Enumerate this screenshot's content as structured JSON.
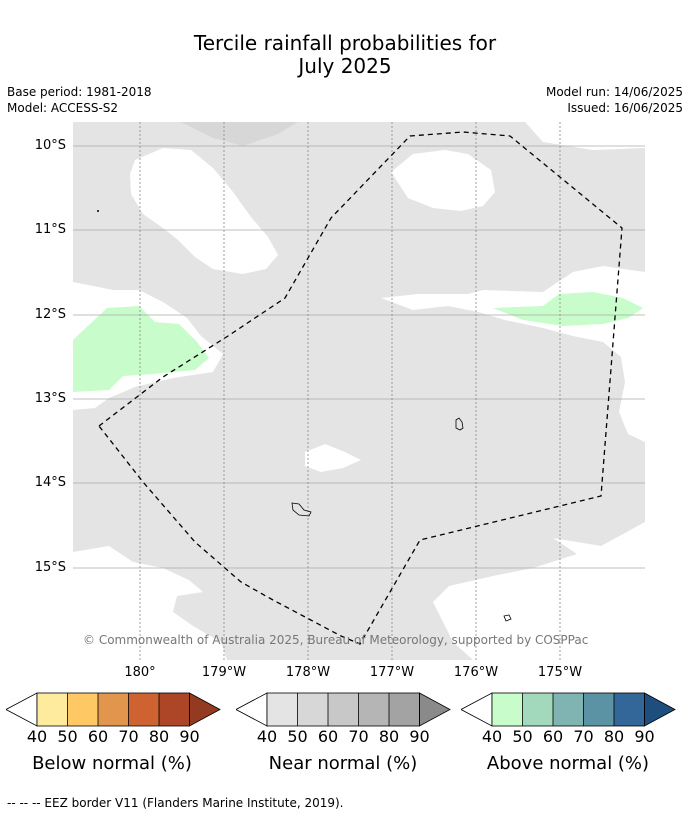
{
  "title": {
    "line1": "Tercile rainfall probabilities for",
    "line2": "July 2025"
  },
  "meta": {
    "base_period": "Base period: 1981-2018",
    "model": "Model: ACCESS-S2",
    "model_run": "Model run: 14/06/2025",
    "issued": "Issued: 16/06/2025"
  },
  "map": {
    "lat_labels": [
      "10°S",
      "11°S",
      "12°S",
      "13°S",
      "14°S",
      "15°S"
    ],
    "lon_labels": [
      "180°",
      "179°W",
      "178°W",
      "177°W",
      "176°W",
      "175°W"
    ],
    "copyright": "© Commonwealth of Australia 2025, Bureau of Meteorology, supported by COSPPac",
    "colors": {
      "near_normal_40": "#e4e4e4",
      "near_normal_50": "#d7d7d7",
      "above_normal_40": "#c8fcca",
      "eez_line": "#000000"
    }
  },
  "legends": [
    {
      "caption": "Below normal (%)",
      "ticks": [
        "40",
        "50",
        "60",
        "70",
        "80",
        "90"
      ],
      "colors": [
        "#ffffff",
        "#feeb9d",
        "#fec965",
        "#e1954d",
        "#ce6331",
        "#ad4626",
        "#933a21"
      ]
    },
    {
      "caption": "Near normal (%)",
      "ticks": [
        "40",
        "50",
        "60",
        "70",
        "80",
        "90"
      ],
      "colors": [
        "#ffffff",
        "#e4e4e4",
        "#d7d7d7",
        "#c8c8c8",
        "#b5b5b5",
        "#a3a3a3",
        "#8a8a8a"
      ]
    },
    {
      "caption": "Above normal (%)",
      "ticks": [
        "40",
        "50",
        "60",
        "70",
        "80",
        "90"
      ],
      "colors": [
        "#ffffff",
        "#c8fcca",
        "#a2d9bc",
        "#7fb4b3",
        "#5b92a4",
        "#336699",
        "#1d4e7e"
      ]
    }
  ],
  "footer": {
    "eez_note": "--  --  -- EEZ border V11 (Flanders Marine Institute, 2019)."
  }
}
